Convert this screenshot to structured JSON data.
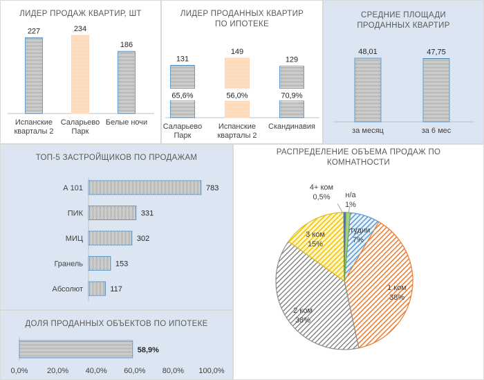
{
  "colors": {
    "panel_blue": "#dce6f2",
    "bar_blue": "#5b9bd5",
    "bar_peach": "#fbd5b5"
  },
  "chart_data": [
    {
      "id": "leaders_sales",
      "type": "bar",
      "title": "ЛИДЕР ПРОДАЖ  КВАРТИР, ШТ",
      "categories": [
        [
          "Испанские",
          "кварталы 2"
        ],
        [
          "Саларьево",
          "Парк"
        ],
        [
          "Белые ночи"
        ]
      ],
      "values": [
        227,
        234,
        186
      ],
      "value_labels": [
        "227",
        "234",
        "186"
      ],
      "highlight_index": 1
    },
    {
      "id": "leaders_mortgage",
      "type": "bar",
      "title": [
        "ЛИДЕР  ПРОДАННЫХ  КВАРТИР",
        "ПО ИПОТЕКЕ"
      ],
      "categories": [
        [
          "Саларьево",
          "Парк"
        ],
        [
          "Испанские",
          "кварталы 2"
        ],
        [
          "Скандинавия"
        ]
      ],
      "values": [
        131,
        149,
        129
      ],
      "value_labels": [
        "131",
        "149",
        "129"
      ],
      "shares": [
        "65,6%",
        "56,0%",
        "70,9%"
      ],
      "highlight_index": 1
    },
    {
      "id": "avg_area",
      "type": "bar",
      "title": [
        "СРЕДНИЕ ПЛОЩАДИ",
        "ПРОДАННЫХ  КВАРТИР"
      ],
      "categories": [
        [
          "за месяц"
        ],
        [
          "за 6 мес"
        ]
      ],
      "values": [
        48.01,
        47.75
      ],
      "value_labels": [
        "48,01",
        "47,75"
      ]
    },
    {
      "id": "top5_developers",
      "type": "bar",
      "orientation": "horizontal",
      "title": "ТОП-5 ЗАСТРОЙЩИКОВ  ПО ПРОДАЖАМ",
      "categories": [
        "А 101",
        "ПИК",
        "МИЦ",
        "Гранель",
        "Абсолют"
      ],
      "values": [
        783,
        331,
        302,
        153,
        117
      ],
      "value_labels": [
        "783",
        "331",
        "302",
        "153",
        "117"
      ]
    },
    {
      "id": "mortgage_share",
      "type": "bar",
      "orientation": "horizontal",
      "title": "ДОЛЯ ПРОДАННЫХ  ОБЪЕКТОВ  ПО ИПОТЕКЕ",
      "values": [
        58.9
      ],
      "value_labels": [
        "58,9%"
      ],
      "xlim": [
        0,
        100
      ],
      "xticks": [
        "0,0%",
        "20,0%",
        "40,0%",
        "60,0%",
        "80,0%",
        "100,0%"
      ]
    },
    {
      "id": "rooms_distribution",
      "type": "pie",
      "title": [
        "РАСПРЕДЕЛЕНИЕ  ОБЪЕМА ПРОДАЖ  ПО",
        "КОМНАТНОСТИ"
      ],
      "slices": [
        {
          "label": "студии",
          "pct_label": "7%",
          "value": 7,
          "color": "#5b9bd5",
          "fill": "#dce9f7"
        },
        {
          "label": "1 ком",
          "pct_label": "38%",
          "value": 38,
          "color": "#ed7d31",
          "fill": "#f9d8c0"
        },
        {
          "label": "2 ком",
          "pct_label": "38%",
          "value": 38,
          "color": "#8c8c8c",
          "fill": "#e3e3e3"
        },
        {
          "label": "3 ком",
          "pct_label": "15%",
          "value": 15,
          "color": "#e0b81f",
          "fill": "#fcefb4"
        },
        {
          "label": "4+ ком",
          "pct_label": "0,5%",
          "value": 0.5,
          "color": "#4472c4",
          "fill": "#4472c4"
        },
        {
          "label": "н/а",
          "pct_label": "1%",
          "value": 1,
          "color": "#70ad47",
          "fill": "#a9d08e"
        }
      ]
    }
  ]
}
